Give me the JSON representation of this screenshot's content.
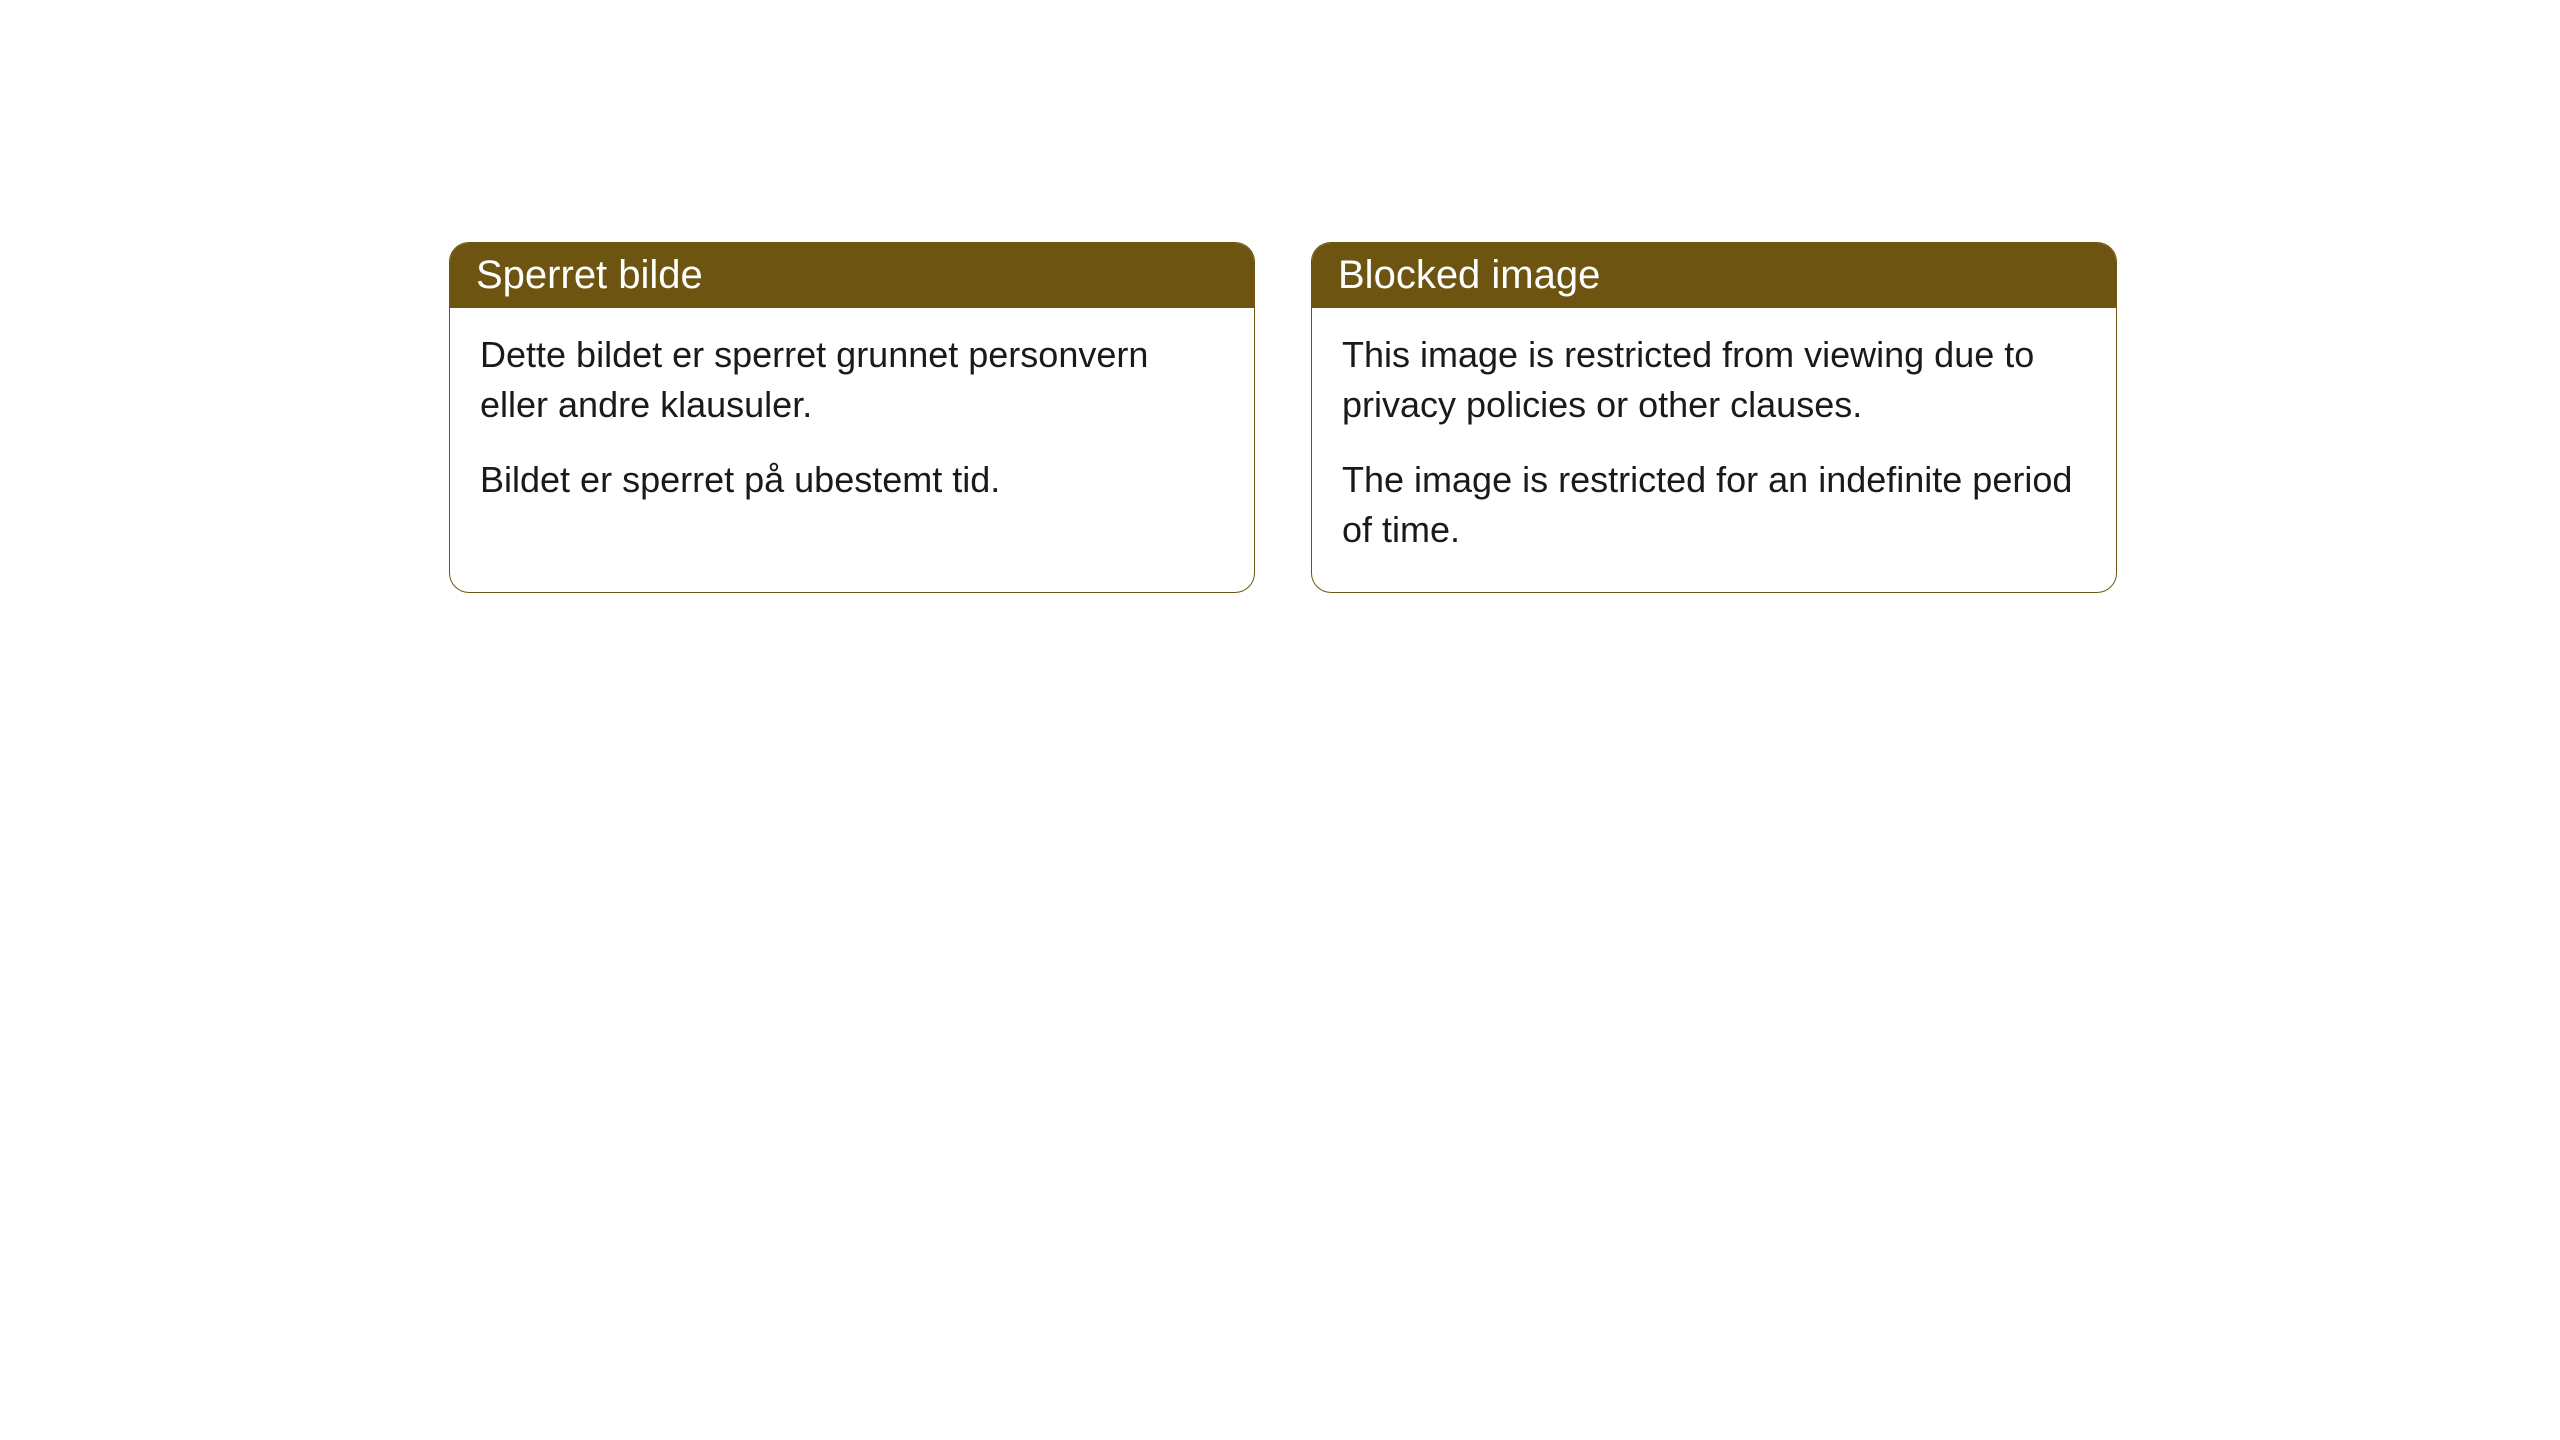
{
  "cards": [
    {
      "title": "Sperret bilde",
      "paragraph1": "Dette bildet er sperret grunnet personvern eller andre klausuler.",
      "paragraph2": "Bildet er sperret på ubestemt tid."
    },
    {
      "title": "Blocked image",
      "paragraph1": "This image is restricted from viewing due to privacy policies or other clauses.",
      "paragraph2": "The image is restricted for an indefinite period of time."
    }
  ],
  "styling": {
    "header_background": "#6d5511",
    "header_text_color": "#ffffff",
    "border_color": "#6d5511",
    "body_text_color": "#1a1a1a",
    "card_background": "#ffffff",
    "border_radius": 20,
    "header_fontsize": 40,
    "body_fontsize": 36
  }
}
